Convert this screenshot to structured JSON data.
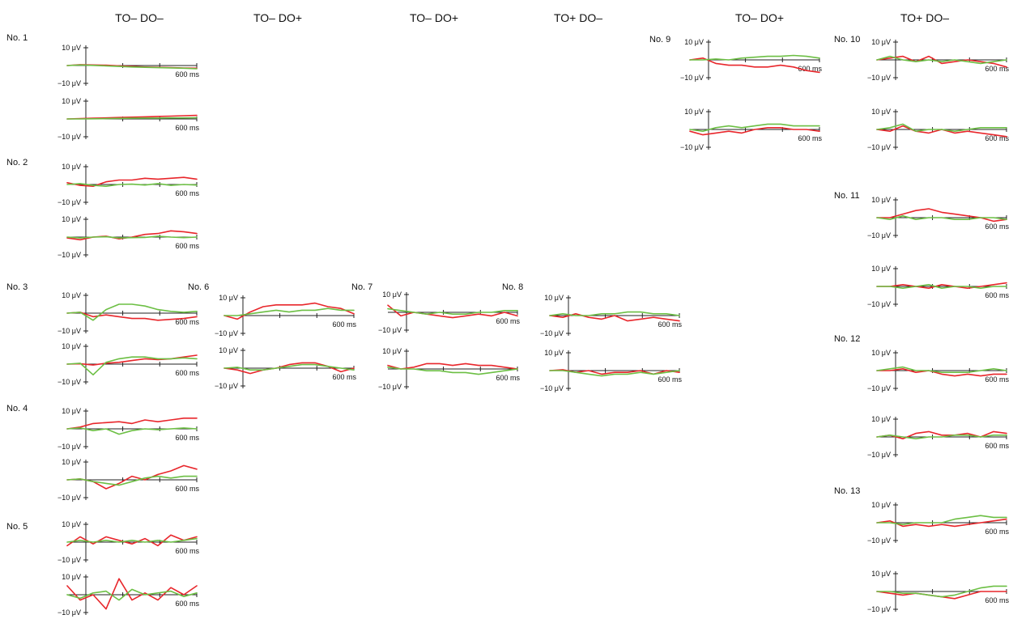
{
  "figure": {
    "column_titles": [
      "TO– DO–",
      "TO– DO+",
      "TO– DO+",
      "TO+ DO–",
      "TO– DO+",
      "TO+ DO–"
    ],
    "y_top_label": "10 μV",
    "y_bottom_label": "−10 μV",
    "x_end_label": "600 ms"
  },
  "chart_data": {
    "type": "line",
    "x_unit": "ms",
    "y_unit": "μV",
    "xlim": [
      -100,
      600
    ],
    "ylim": [
      -10,
      10
    ],
    "x_ticks": [
      0,
      200,
      400,
      600
    ],
    "colors": {
      "red_trace": "#e8262b",
      "green_trace": "#6cbf44",
      "axis": "#222222"
    },
    "subjects": [
      {
        "label": "No. 1",
        "plots": [
          {
            "red": [
              0,
              0.5,
              0.3,
              0.2,
              -0.2,
              -0.5,
              -0.8,
              -1,
              -1.2,
              -1.4,
              -1.5
            ],
            "green": [
              0,
              0.3,
              0.1,
              -0.2,
              -0.5,
              -0.8,
              -1,
              -1.2,
              -1.3,
              -1.5,
              -1.8
            ]
          },
          {
            "red": [
              0,
              0.2,
              0.4,
              0.6,
              0.8,
              1,
              1.2,
              1.4,
              1.6,
              1.8,
              2
            ],
            "green": [
              0,
              0,
              0.1,
              0.2,
              0.3,
              0.4,
              0.5,
              0.5,
              0.6,
              0.6,
              0.7
            ]
          }
        ]
      },
      {
        "label": "No. 2",
        "plots": [
          {
            "red": [
              1,
              -0.5,
              -1,
              1.5,
              2.5,
              2.5,
              3.5,
              3,
              3.5,
              4,
              3
            ],
            "green": [
              0,
              0.5,
              -0.5,
              -1,
              0,
              0.2,
              -0.3,
              0.5,
              -0.5,
              0,
              -0.3
            ]
          },
          {
            "red": [
              -0.5,
              -1.5,
              0,
              0.5,
              -1,
              0,
              1.5,
              2,
              3.5,
              3,
              2
            ],
            "green": [
              0,
              -0.5,
              0,
              0.2,
              -0.5,
              -0.3,
              -0.2,
              0.5,
              0,
              -0.3,
              0
            ]
          }
        ]
      },
      {
        "label": "No. 3",
        "plots": [
          {
            "red": [
              0,
              0.5,
              -2,
              -1,
              -2,
              -3,
              -3,
              -4,
              -3.5,
              -3,
              -2
            ],
            "green": [
              0,
              0.5,
              -4,
              2,
              5,
              5,
              4,
              2,
              1,
              0.5,
              1
            ]
          },
          {
            "red": [
              0,
              0.2,
              -0.5,
              0.5,
              1,
              2,
              3,
              2.5,
              3,
              4,
              5
            ],
            "green": [
              0,
              0.5,
              -6,
              1,
              3,
              4,
              4,
              3,
              3,
              3.5,
              3
            ]
          }
        ]
      },
      {
        "label": "No. 4",
        "plots": [
          {
            "red": [
              0,
              1,
              3,
              3.5,
              4,
              3,
              5,
              4,
              5,
              6,
              6
            ],
            "green": [
              0,
              0.5,
              -1,
              0,
              -3,
              -1,
              0,
              -0.5,
              0,
              0.5,
              0
            ]
          },
          {
            "red": [
              0,
              0.5,
              -1,
              -5,
              -2,
              2,
              0,
              3,
              5,
              8,
              6
            ],
            "green": [
              0,
              0.5,
              -1,
              -2,
              -3,
              -1,
              1,
              2,
              1,
              2,
              2
            ]
          }
        ]
      },
      {
        "label": "No. 5",
        "plots": [
          {
            "red": [
              -2,
              3,
              -1,
              3,
              1,
              -1,
              2,
              -2,
              4,
              1,
              3
            ],
            "green": [
              0,
              1,
              0,
              1,
              0,
              1,
              0,
              1,
              0,
              1,
              2
            ]
          },
          {
            "red": [
              5,
              -3,
              0,
              -8,
              9,
              -3,
              1,
              -3,
              4,
              0,
              5
            ],
            "green": [
              0,
              -2,
              1,
              2,
              -3,
              3,
              0,
              1,
              2,
              -1,
              1
            ]
          }
        ]
      },
      {
        "label": "No. 6",
        "plots": [
          {
            "red": [
              0,
              -2,
              2,
              5,
              6,
              6,
              6,
              7,
              5,
              4,
              1
            ],
            "green": [
              0,
              0,
              1,
              2,
              3,
              2,
              3,
              3,
              4,
              3,
              3
            ]
          },
          {
            "red": [
              0,
              -1,
              -3,
              -1,
              0,
              2,
              3,
              3,
              1,
              -2,
              0
            ],
            "green": [
              0,
              0.5,
              -1,
              -1,
              0,
              1,
              2,
              2,
              1,
              0,
              -1
            ]
          }
        ]
      },
      {
        "label": "No. 7",
        "plots": [
          {
            "red": [
              4,
              -2,
              0,
              -1,
              -2,
              -3,
              -2,
              -1,
              -2,
              0,
              -2
            ],
            "green": [
              2,
              1,
              0,
              -1,
              0,
              -1,
              -1,
              0,
              0,
              1,
              1
            ]
          },
          {
            "red": [
              2,
              0,
              1,
              3,
              3,
              2,
              3,
              2,
              2,
              1,
              0
            ],
            "green": [
              1,
              0,
              0,
              -1,
              -1,
              -2,
              -2,
              -3,
              -2,
              -1,
              0
            ]
          }
        ]
      },
      {
        "label": "No. 8",
        "plots": [
          {
            "red": [
              0,
              -1,
              1,
              -1,
              -2,
              0,
              -3,
              -2,
              -1,
              -2,
              -3
            ],
            "green": [
              0,
              1,
              0,
              0,
              1,
              1,
              2,
              2,
              1,
              1,
              0
            ]
          },
          {
            "red": [
              0,
              0.5,
              -1,
              0,
              -2,
              -1,
              -1,
              0,
              -2,
              0,
              -1
            ],
            "green": [
              0,
              0,
              -1,
              -2,
              -3,
              -2,
              -2,
              -1,
              -2,
              -1,
              0
            ]
          }
        ]
      },
      {
        "label": "No. 9",
        "plots": [
          {
            "red": [
              0,
              1,
              -2,
              -3,
              -3,
              -4,
              -4,
              -3,
              -4,
              -6,
              -7
            ],
            "green": [
              0,
              0,
              0.5,
              0,
              1,
              1.5,
              2,
              2,
              2.5,
              2,
              1
            ]
          },
          {
            "red": [
              -1,
              -3,
              -2,
              -1,
              -2,
              0,
              1,
              1,
              0,
              0,
              -1
            ],
            "green": [
              0,
              -1,
              1,
              2,
              1,
              2,
              3,
              3,
              2,
              2,
              2
            ]
          }
        ]
      },
      {
        "label": "No. 10",
        "plots": [
          {
            "red": [
              0,
              1,
              2,
              -1,
              2,
              -2,
              -1,
              0,
              -1,
              -2,
              -4
            ],
            "green": [
              0,
              2,
              0,
              -1,
              0,
              -1,
              0,
              -1,
              -2,
              -1,
              0
            ]
          },
          {
            "red": [
              0,
              -1,
              2,
              -1,
              -2,
              0,
              -2,
              -1,
              -2,
              -3,
              -4
            ],
            "green": [
              0,
              1,
              3,
              -1,
              0,
              0,
              -1,
              0,
              1,
              1,
              1
            ]
          }
        ]
      },
      {
        "label": "No. 11",
        "plots": [
          {
            "red": [
              0,
              0,
              2,
              4,
              5,
              3,
              2,
              1,
              0,
              -2,
              -1
            ],
            "green": [
              0,
              -1,
              1,
              -1,
              0,
              0,
              -1,
              -1,
              0,
              0,
              -1
            ]
          },
          {
            "red": [
              0,
              0,
              1,
              0,
              -1,
              1,
              0,
              -1,
              0,
              1,
              2
            ],
            "green": [
              0,
              0,
              -1,
              0,
              1,
              -1,
              0,
              0,
              -1,
              0,
              0
            ]
          }
        ]
      },
      {
        "label": "No. 12",
        "plots": [
          {
            "red": [
              0,
              0,
              1,
              -1,
              0,
              -2,
              -3,
              -2,
              -3,
              -2,
              -2
            ],
            "green": [
              0,
              1,
              2,
              0,
              0,
              -1,
              -1,
              -1,
              0,
              1,
              0
            ]
          },
          {
            "red": [
              0,
              1,
              -1,
              2,
              3,
              1,
              1,
              2,
              0,
              3,
              2
            ],
            "green": [
              0,
              1,
              0,
              -1,
              0,
              0,
              1,
              1,
              0,
              1,
              1
            ]
          }
        ]
      },
      {
        "label": "No. 13",
        "plots": [
          {
            "red": [
              0,
              1,
              -2,
              -1,
              -2,
              -1,
              -2,
              -1,
              0,
              1,
              2
            ],
            "green": [
              0,
              0,
              -1,
              0,
              0,
              0,
              2,
              3,
              4,
              3,
              3
            ]
          },
          {
            "red": [
              0,
              -1,
              -2,
              -1,
              -2,
              -3,
              -4,
              -2,
              0,
              0,
              0
            ],
            "green": [
              0,
              0,
              -1,
              -1,
              -2,
              -3,
              -2,
              0,
              2,
              3,
              3
            ]
          }
        ]
      }
    ]
  }
}
